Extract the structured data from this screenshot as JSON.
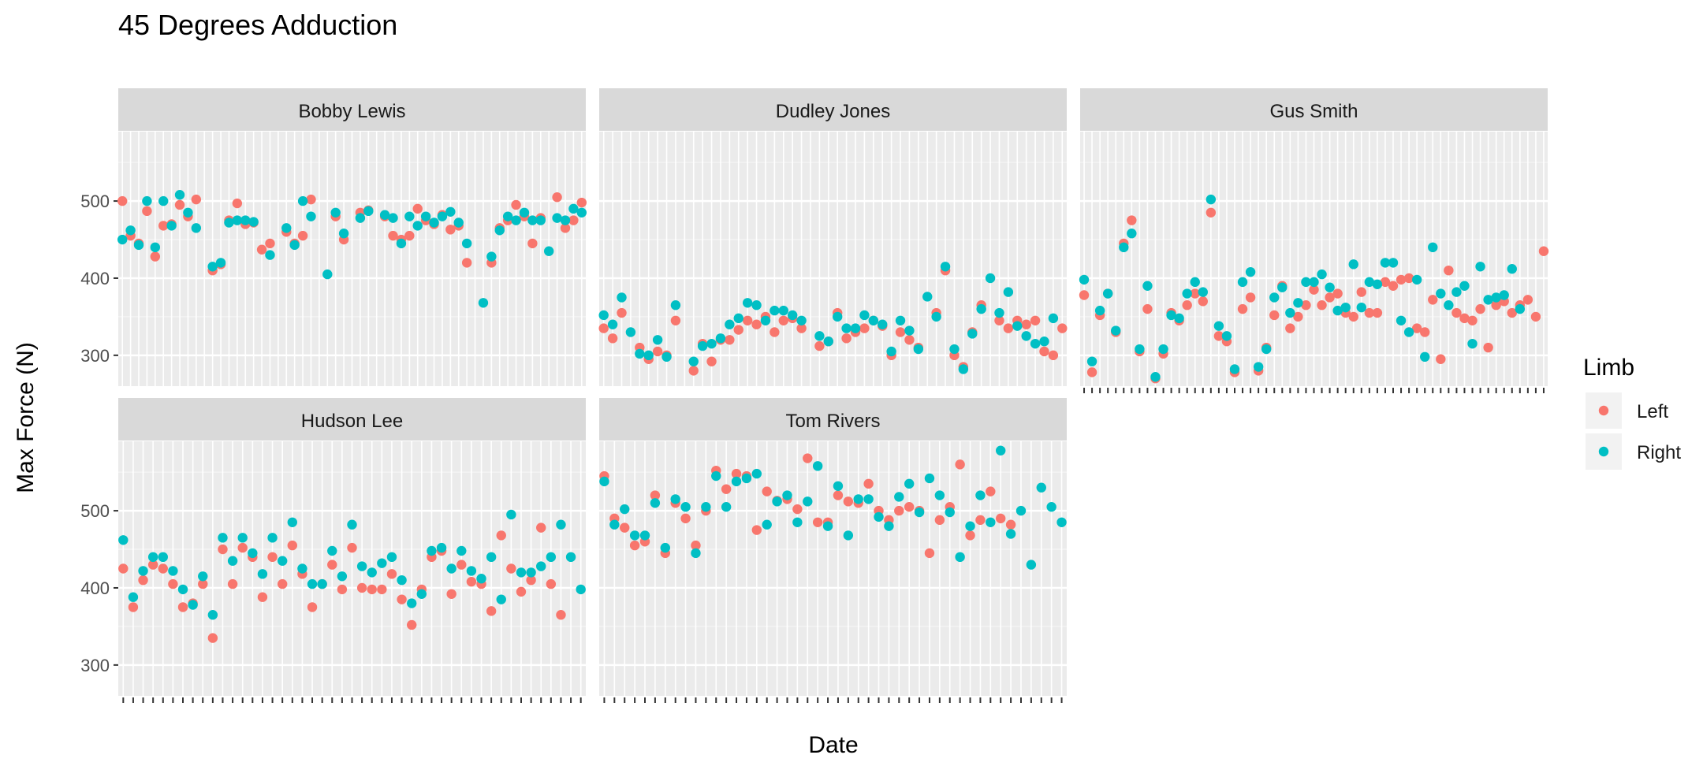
{
  "chart_data": {
    "type": "scatter",
    "title": "45 Degrees Adduction",
    "xlabel": "Date",
    "ylabel": "Max Force (N)",
    "ylim": [
      260,
      590
    ],
    "yticks": [
      300,
      400,
      500
    ],
    "grid": true,
    "legend": {
      "title": "Limb",
      "placement": "right",
      "entries": [
        "Left",
        "Right"
      ]
    },
    "colors": {
      "Left": "#F8766D",
      "Right": "#00BFC4"
    },
    "panels": [
      {
        "name": "Bobby Lewis",
        "series": [
          {
            "name": "Left",
            "values": [
              500,
              455,
              445,
              487,
              428,
              468,
              470,
              495,
              480,
              502,
              null,
              410,
              418,
              475,
              497,
              470,
              472,
              437,
              445,
              null,
              460,
              445,
              455,
              502,
              null,
              null,
              480,
              450,
              null,
              485,
              488,
              null,
              480,
              455,
              450,
              455,
              490,
              475,
              470,
              482,
              463,
              468,
              420,
              null,
              null,
              420,
              465,
              475,
              495,
              480,
              445,
              478,
              null,
              505,
              465,
              475,
              498
            ]
          },
          {
            "name": "Right",
            "values": [
              450,
              462,
              443,
              500,
              440,
              500,
              468,
              508,
              485,
              465,
              null,
              415,
              420,
              472,
              475,
              475,
              473,
              null,
              430,
              null,
              465,
              443,
              500,
              480,
              null,
              405,
              485,
              458,
              null,
              478,
              487,
              null,
              482,
              478,
              445,
              480,
              468,
              480,
              472,
              480,
              486,
              472,
              445,
              null,
              368,
              428,
              462,
              480,
              475,
              485,
              475,
              475,
              435,
              478,
              475,
              490,
              485
            ]
          }
        ]
      },
      {
        "name": "Dudley Jones",
        "series": [
          {
            "name": "Left",
            "values": [
              335,
              322,
              355,
              null,
              310,
              295,
              305,
              300,
              345,
              null,
              280,
              315,
              292,
              320,
              320,
              333,
              345,
              340,
              350,
              330,
              345,
              348,
              335,
              null,
              312,
              318,
              355,
              322,
              330,
              335,
              345,
              338,
              300,
              330,
              320,
              310,
              null,
              355,
              410,
              300,
              285,
              330,
              365,
              null,
              345,
              335,
              345,
              340,
              345,
              305,
              300,
              335
            ]
          },
          {
            "name": "Right",
            "values": [
              352,
              340,
              375,
              330,
              302,
              300,
              320,
              298,
              365,
              null,
              292,
              312,
              315,
              322,
              340,
              348,
              368,
              365,
              345,
              358,
              358,
              352,
              345,
              null,
              325,
              318,
              350,
              335,
              335,
              352,
              345,
              340,
              305,
              345,
              332,
              308,
              376,
              350,
              415,
              308,
              282,
              328,
              360,
              400,
              355,
              382,
              338,
              325,
              315,
              318,
              348
            ]
          }
        ]
      },
      {
        "name": "Gus Smith",
        "series": [
          {
            "name": "Left",
            "values": [
              378,
              278,
              352,
              380,
              330,
              445,
              475,
              305,
              360,
              270,
              302,
              355,
              345,
              365,
              380,
              370,
              485,
              325,
              318,
              278,
              360,
              375,
              280,
              310,
              352,
              390,
              335,
              350,
              365,
              385,
              365,
              375,
              380,
              355,
              350,
              382,
              355,
              355,
              395,
              390,
              398,
              400,
              335,
              330,
              372,
              295,
              410,
              355,
              348,
              345,
              360,
              310,
              365,
              370,
              355,
              365,
              372,
              350,
              435
            ]
          },
          {
            "name": "Right",
            "values": [
              398,
              292,
              358,
              380,
              332,
              440,
              458,
              308,
              390,
              272,
              308,
              352,
              348,
              380,
              395,
              382,
              502,
              338,
              325,
              282,
              395,
              408,
              285,
              308,
              375,
              388,
              355,
              368,
              395,
              395,
              405,
              388,
              358,
              362,
              418,
              362,
              395,
              392,
              420,
              420,
              345,
              330,
              398,
              298,
              440,
              380,
              365,
              382,
              390,
              315,
              415,
              372,
              375,
              378,
              412,
              360
            ]
          }
        ]
      },
      {
        "name": "Hudson Lee",
        "series": [
          {
            "name": "Left",
            "values": [
              425,
              375,
              410,
              430,
              425,
              405,
              375,
              380,
              405,
              335,
              450,
              405,
              452,
              440,
              388,
              440,
              405,
              455,
              418,
              375,
              405,
              430,
              398,
              452,
              400,
              398,
              398,
              418,
              385,
              352,
              398,
              440,
              448,
              392,
              430,
              408,
              405,
              370,
              468,
              425,
              395,
              410,
              478,
              405,
              365
            ]
          },
          {
            "name": "Right",
            "values": [
              462,
              388,
              422,
              440,
              440,
              422,
              398,
              378,
              415,
              365,
              465,
              435,
              465,
              445,
              418,
              465,
              435,
              485,
              425,
              405,
              405,
              448,
              415,
              482,
              428,
              420,
              432,
              440,
              410,
              380,
              392,
              448,
              452,
              425,
              448,
              422,
              412,
              440,
              385,
              495,
              420,
              420,
              428,
              440,
              482,
              440,
              398
            ]
          }
        ]
      },
      {
        "name": "Tom Rivers",
        "series": [
          {
            "name": "Left",
            "values": [
              545,
              490,
              478,
              455,
              460,
              520,
              445,
              510,
              490,
              455,
              500,
              552,
              528,
              548,
              545,
              475,
              525,
              513,
              515,
              502,
              568,
              485,
              485,
              520,
              512,
              510,
              535,
              500,
              488,
              500,
              505,
              500,
              445,
              488,
              505,
              560,
              468,
              488,
              525,
              490,
              482
            ]
          },
          {
            "name": "Right",
            "values": [
              538,
              482,
              502,
              468,
              468,
              510,
              452,
              515,
              505,
              445,
              505,
              545,
              505,
              538,
              542,
              548,
              482,
              512,
              520,
              485,
              512,
              558,
              480,
              532,
              468,
              515,
              515,
              492,
              480,
              518,
              535,
              498,
              542,
              520,
              498,
              440,
              480,
              520,
              485,
              578,
              470,
              500,
              430,
              530,
              505,
              485
            ]
          }
        ]
      }
    ]
  }
}
